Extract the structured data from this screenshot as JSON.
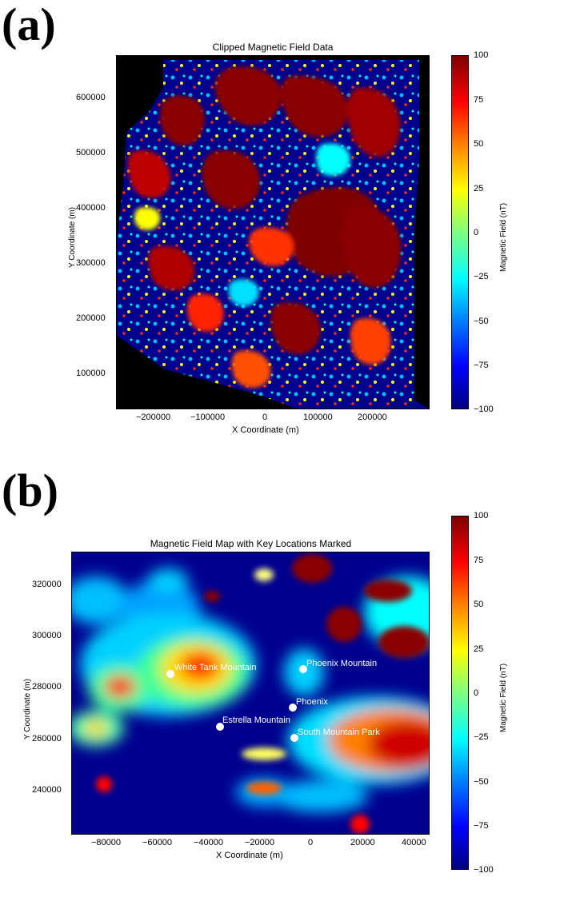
{
  "panels": [
    {
      "label": "(a)"
    },
    {
      "label": "(b)"
    }
  ],
  "chart_data": [
    {
      "type": "heatmap",
      "title": "Clipped Magnetic Field Data",
      "xlabel": "X Coordinate (m)",
      "ylabel": "Y Coordinate (m)",
      "xlim": [
        -270000,
        300000
      ],
      "ylim": [
        35000,
        680000
      ],
      "xticks": [
        -200000,
        -100000,
        0,
        100000,
        200000
      ],
      "xtick_labels": [
        "−200000",
        "−100000",
        "0",
        "100000",
        "200000"
      ],
      "yticks": [
        100000,
        200000,
        300000,
        400000,
        500000,
        600000
      ],
      "ytick_labels": [
        "100000",
        "200000",
        "300000",
        "400000",
        "500000",
        "600000"
      ],
      "colorbar": {
        "label": "Magnetic Field (nT)",
        "range": [
          -100,
          100
        ],
        "ticks": [
          "100",
          "75",
          "50",
          "25",
          "0",
          "−25",
          "−50",
          "−75",
          "−100"
        ],
        "colormap": "jet"
      }
    },
    {
      "type": "heatmap",
      "title": "Magnetic Field Map with Key Locations Marked",
      "xlabel": "X Coordinate (m)",
      "ylabel": "Y Coordinate (m)",
      "xlim": [
        -93000,
        47000
      ],
      "ylim": [
        222000,
        333000
      ],
      "xticks": [
        -80000,
        -60000,
        -40000,
        -20000,
        0,
        20000,
        40000
      ],
      "xtick_labels": [
        "−80000",
        "−60000",
        "−40000",
        "−20000",
        "0",
        "20000",
        "40000"
      ],
      "yticks": [
        240000,
        260000,
        280000,
        300000,
        320000
      ],
      "ytick_labels": [
        "240000",
        "260000",
        "280000",
        "300000",
        "320000"
      ],
      "locations": [
        {
          "name": "White Tank Mountain",
          "x": -55000,
          "y": 285500
        },
        {
          "name": "Phoenix Mountain",
          "x": -3000,
          "y": 287000
        },
        {
          "name": "Phoenix",
          "x": -7000,
          "y": 272000
        },
        {
          "name": "Estrella Mountain",
          "x": -36000,
          "y": 264500
        },
        {
          "name": "South Mountain Park",
          "x": -6500,
          "y": 260000
        }
      ],
      "colorbar": {
        "label": "Magnetic Field (nT)",
        "range": [
          -100,
          100
        ],
        "ticks": [
          "100",
          "75",
          "50",
          "25",
          "0",
          "−25",
          "−50",
          "−75",
          "−100"
        ],
        "colormap": "jet"
      }
    }
  ],
  "colors": {
    "background": "#000000",
    "low": "#00007f",
    "mid_low": "#00bfff",
    "mid": "#7fff7f",
    "mid_high": "#ffff00",
    "high": "#ff0000",
    "max": "#7f0000",
    "marker": "#ffffff"
  }
}
